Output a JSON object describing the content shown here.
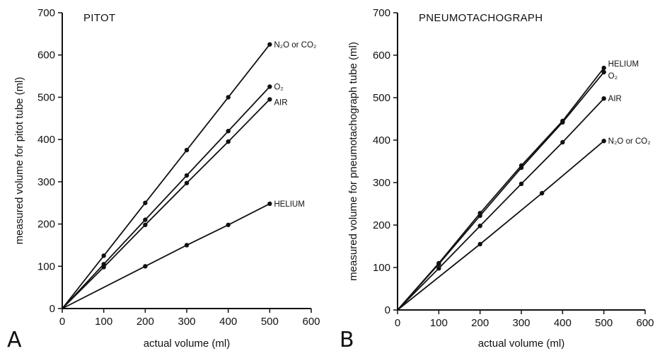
{
  "chart_data": [
    {
      "type": "line",
      "panel_letter": "A",
      "title": "PITOT",
      "xlabel": "actual volume (ml)",
      "ylabel": "measured volume for pitot tube (ml)",
      "xlim": [
        0,
        600
      ],
      "ylim": [
        0,
        700
      ],
      "xticks": [
        "0",
        "100",
        "200",
        "300",
        "400",
        "500",
        "600"
      ],
      "yticks": [
        "0",
        "100",
        "200",
        "300",
        "400",
        "500",
        "600",
        "700"
      ],
      "grid": false,
      "legend": "none",
      "series": [
        {
          "name": "N₂O or CO₂",
          "x": [
            0,
            100,
            200,
            300,
            400,
            500
          ],
          "y": [
            0,
            125,
            250,
            375,
            500,
            625
          ]
        },
        {
          "name": "O₂",
          "x": [
            0,
            100,
            200,
            300,
            400,
            500
          ],
          "y": [
            0,
            105,
            210,
            315,
            420,
            525
          ]
        },
        {
          "name": "AIR",
          "x": [
            0,
            100,
            200,
            300,
            400,
            500
          ],
          "y": [
            0,
            98,
            198,
            297,
            395,
            495
          ]
        },
        {
          "name": "HELIUM",
          "x": [
            0,
            200,
            300,
            400,
            500
          ],
          "y": [
            0,
            100,
            150,
            198,
            248
          ]
        }
      ]
    },
    {
      "type": "line",
      "panel_letter": "B",
      "title": "PNEUMOTACHOGRAPH",
      "xlabel": "actual volume (ml)",
      "ylabel": "measured volume for pneumotachograph tube (ml)",
      "xlim": [
        0,
        600
      ],
      "ylim": [
        0,
        700
      ],
      "xticks": [
        "0",
        "100",
        "200",
        "300",
        "400",
        "500",
        "600"
      ],
      "yticks": [
        "0",
        "100",
        "200",
        "300",
        "400",
        "500",
        "600",
        "700"
      ],
      "grid": false,
      "legend": "none",
      "series": [
        {
          "name": "HELIUM",
          "x": [
            0,
            100,
            200,
            300,
            400,
            500
          ],
          "y": [
            0,
            110,
            228,
            340,
            445,
            570
          ]
        },
        {
          "name": "O₂",
          "x": [
            0,
            100,
            200,
            300,
            400,
            500
          ],
          "y": [
            0,
            108,
            222,
            335,
            442,
            560
          ]
        },
        {
          "name": "AIR",
          "x": [
            0,
            100,
            200,
            300,
            400,
            500
          ],
          "y": [
            0,
            98,
            198,
            297,
            395,
            498
          ]
        },
        {
          "name": "N₂O or CO₂",
          "x": [
            0,
            200,
            350,
            500
          ],
          "y": [
            0,
            155,
            275,
            398
          ]
        }
      ]
    }
  ]
}
